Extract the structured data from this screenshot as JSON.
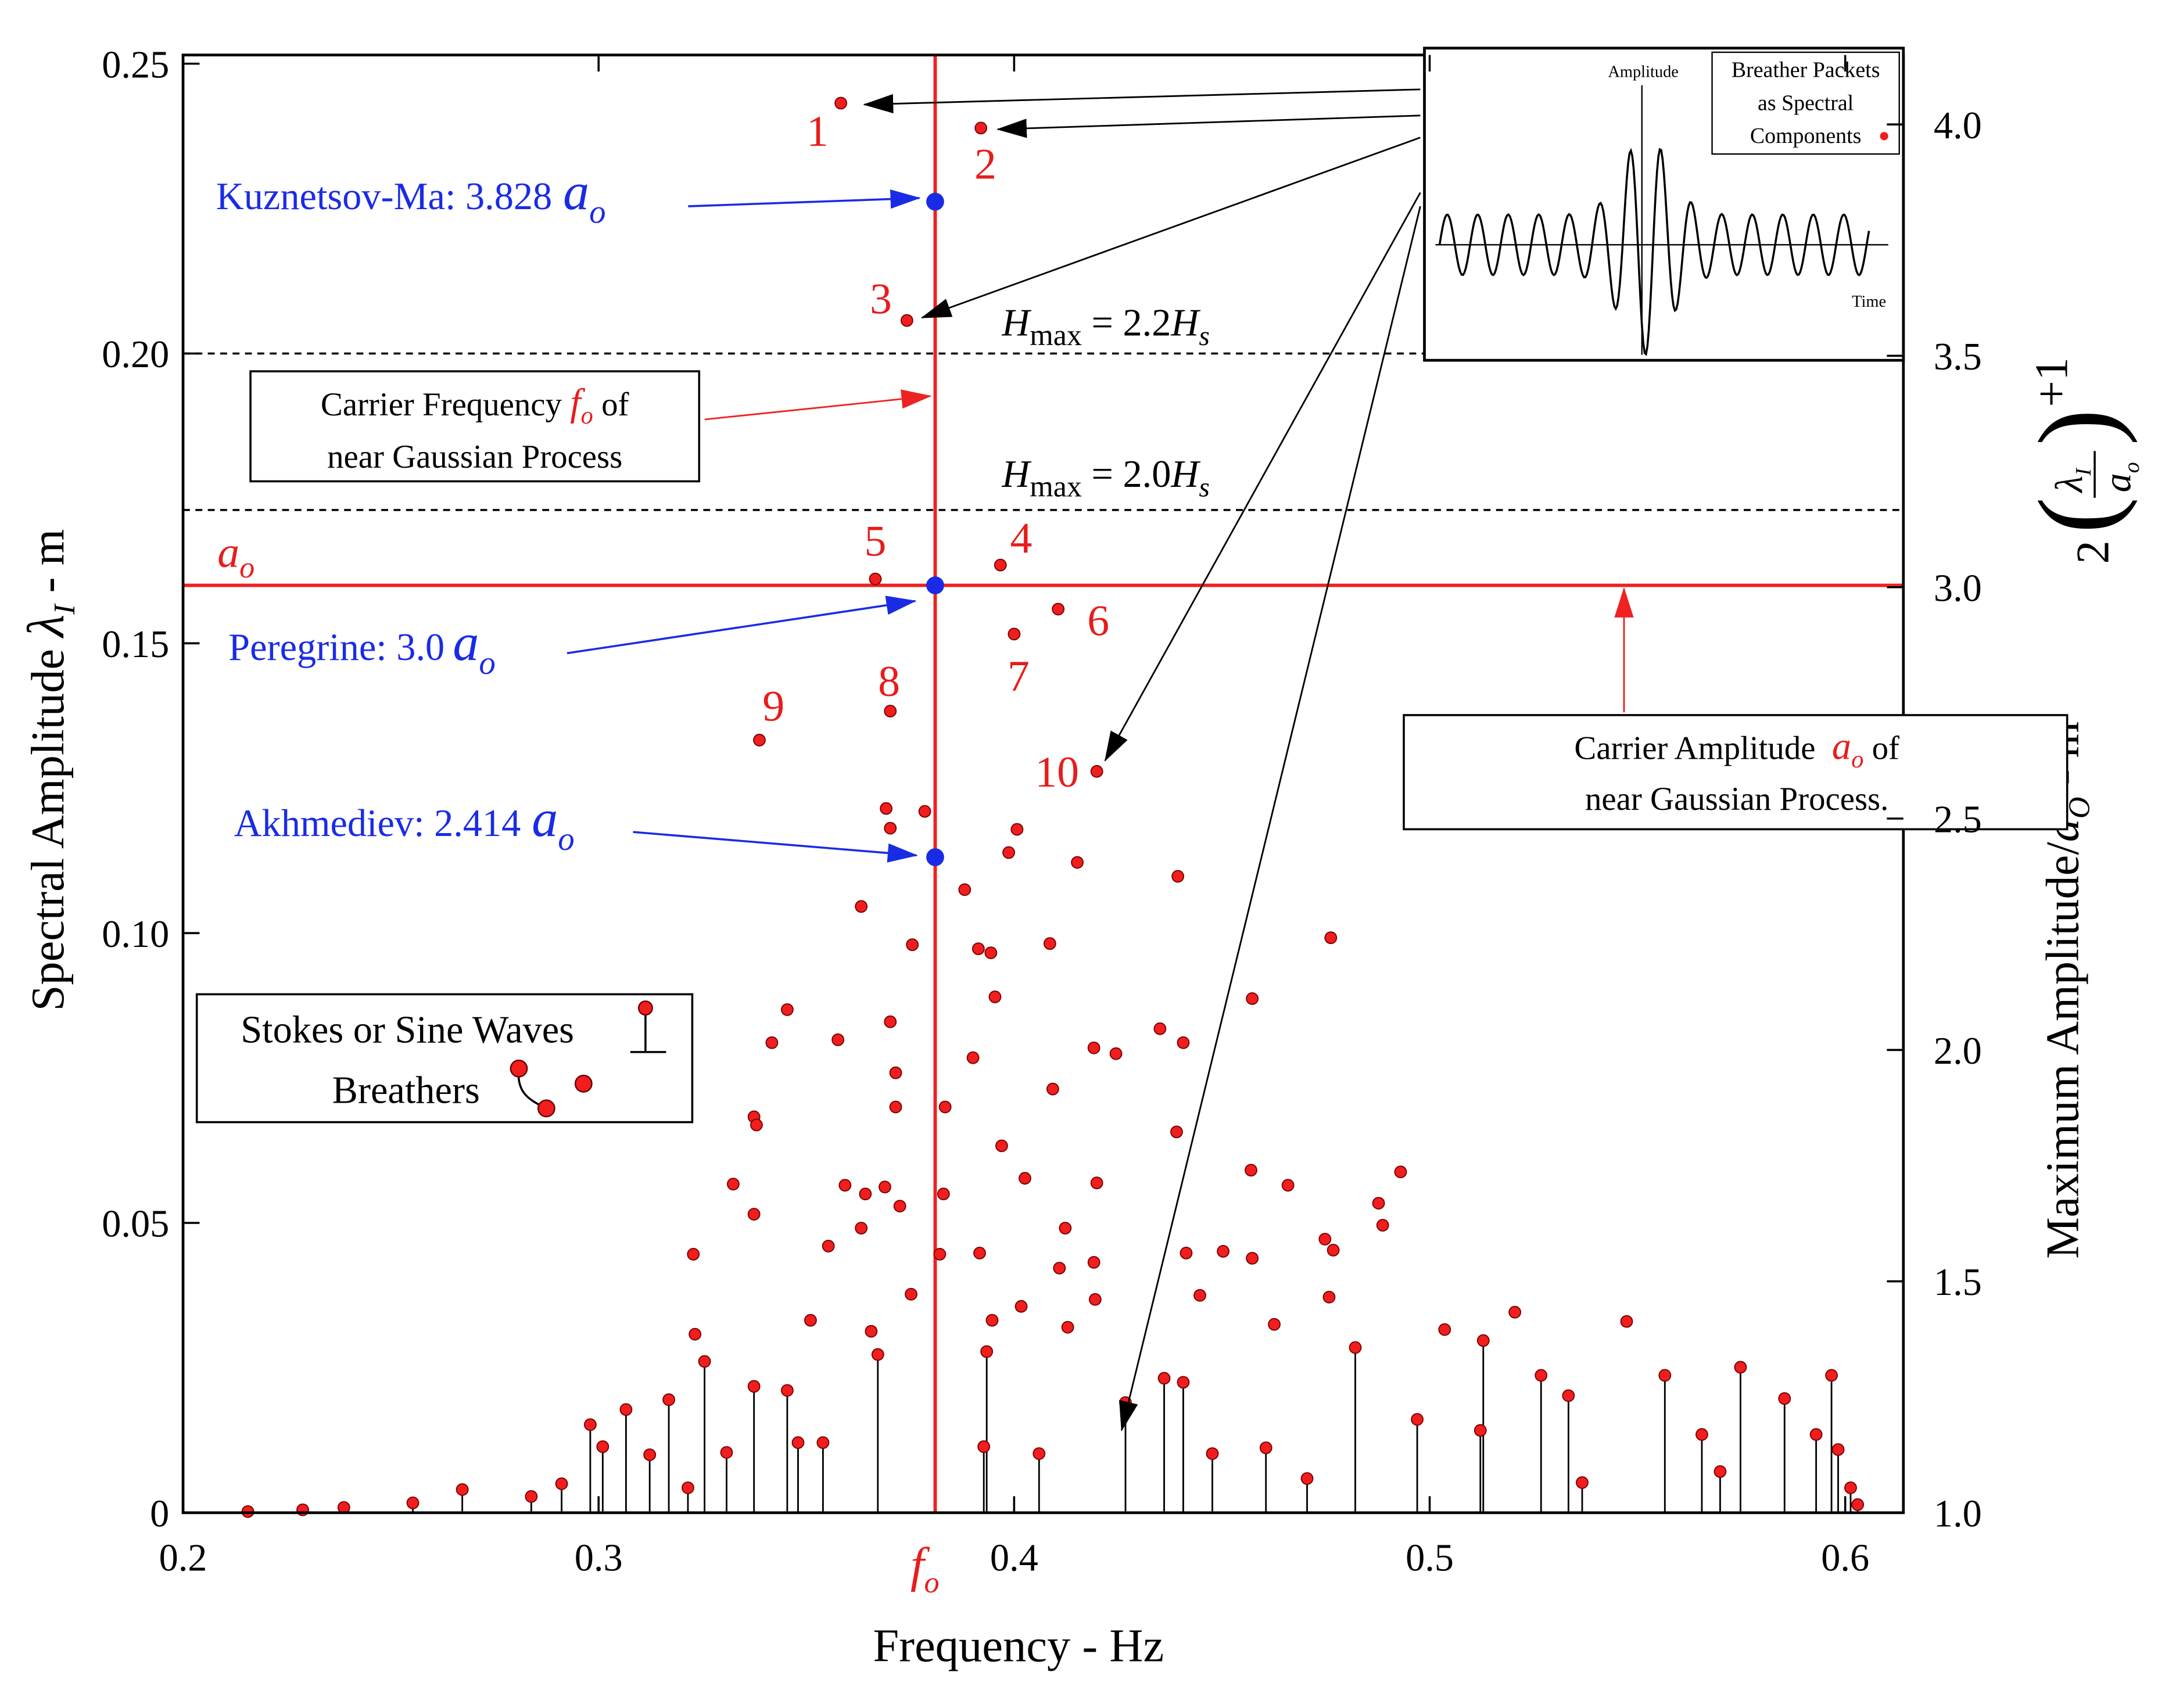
{
  "chart_data": {
    "type": "scatter",
    "x_label": "Frequency - Hz",
    "y_label": [
      "Spectral Amplitude ",
      "λ",
      "I",
      " - m"
    ],
    "y2_label": [
      "Maximum Amplitude/",
      "a",
      "O",
      " - m"
    ],
    "y2_formula": [
      "2",
      "λ",
      "I",
      "a",
      "o",
      "+1"
    ],
    "xlim": [
      0.2,
      0.614
    ],
    "ylim": [
      0,
      0.2515
    ],
    "y2lim": [
      1.0,
      4.15
    ],
    "xticks": [
      0.2,
      0.3,
      0.4,
      0.5,
      0.6
    ],
    "yticks": [
      0,
      0.05,
      {
        "value": 0.1,
        "label": "0.10"
      },
      0.15,
      {
        "value": 0.2,
        "label": "0.20"
      },
      0.25
    ],
    "y2ticks": [
      {
        "value": 1,
        "label": "1.0"
      },
      1.5,
      {
        "value": 2,
        "label": "2.0"
      },
      2.5,
      {
        "value": 3,
        "label": "3.0"
      },
      3.5,
      {
        "value": 4,
        "label": "4.0"
      }
    ],
    "amplitude_symbol": [
      "a",
      "o"
    ],
    "frequency_symbol": [
      "f",
      "o"
    ],
    "carrier": {
      "frequency": 0.381,
      "amplitude": 0.16,
      "color": "#ee2222"
    },
    "hmax_lines": [
      {
        "value": 0.2,
        "label": [
          "H",
          "max",
          " = 2.2",
          "H",
          "s"
        ]
      },
      {
        "value": 0.173,
        "label": [
          "H",
          "max",
          " = 2.0",
          "H",
          "s"
        ]
      }
    ],
    "solutions": {
      "color": "#1a2be6",
      "texts": [
        "Kuznetsov-Ma: 3.828",
        "Peregrine: 3.0",
        "Akhmediev: 2.414"
      ],
      "values": [
        0.2262,
        0.16,
        0.1131
      ]
    },
    "boxes": [
      [
        "Carrier Frequency ",
        " of",
        "near Gaussian Process"
      ],
      [
        "Carrier Amplitude ",
        " of",
        "near Gaussian Process."
      ]
    ],
    "legend_entries": [
      "Stokes or Sine Waves",
      "Breathers"
    ],
    "inset": {
      "title": [
        "Breather Packets",
        "as Spectral",
        "Components"
      ],
      "y_label": "Amplitude",
      "x_label": "Time"
    },
    "numbered_points": {
      "labels": [
        "1",
        "2",
        "3",
        "4",
        "5",
        "6",
        "7",
        "8",
        "9",
        "10"
      ],
      "x": [
        0.3583,
        0.392,
        0.3742,
        0.3967,
        0.3666,
        0.4106,
        0.4,
        0.3702,
        0.3387,
        0.4199
      ],
      "values": [
        0.2432,
        0.2389,
        0.2057,
        0.1635,
        0.1611,
        0.1559,
        0.1516,
        0.1383,
        0.1333,
        0.1279
      ]
    },
    "series": [
      {
        "color": "#f21d1d",
        "x": [
          0.3692,
          0.3785,
          0.3702,
          0.4007,
          0.3987,
          0.4152,
          0.4394,
          0.3881,
          0.3632,
          0.3944,
          0.3755,
          0.4086,
          0.4762,
          0.3914,
          0.3954,
          0.4573,
          0.3454,
          0.3702,
          0.4351,
          0.4407,
          0.3417,
          0.3576,
          0.4192,
          0.4245,
          0.3901,
          0.3715,
          0.4093,
          0.3715,
          0.3834,
          0.3374,
          0.4391,
          0.397,
          0.338,
          0.457,
          0.493,
          0.4026,
          0.4199,
          0.3324,
          0.3593,
          0.3689,
          0.4659,
          0.383,
          0.4877,
          0.3642,
          0.3725,
          0.3374,
          0.4887,
          0.3632,
          0.4123,
          0.4748,
          0.3553,
          0.3917,
          0.3821,
          0.4414,
          0.4503,
          0.4573,
          0.4768,
          0.4192,
          0.3228,
          0.4109,
          0.3752,
          0.4758,
          0.4195,
          0.4017,
          0.4447,
          0.351,
          0.3947,
          0.4626,
          0.5205,
          0.5474,
          0.3656,
          0.4129,
          0.3232,
          0.5036,
          0.5129,
          0.4821,
          0.3672,
          0.3934,
          0.3255,
          0.5748,
          0.5967,
          0.3374,
          0.3454,
          0.5566,
          0.5854,
          0.3169,
          0.3066,
          0.298,
          0.5268,
          0.5334,
          0.497,
          0.4407,
          0.4361,
          0.4268,
          0.5122,
          0.5655,
          0.593,
          0.301,
          0.3123,
          0.3308,
          0.348,
          0.354,
          0.3927,
          0.406,
          0.4477,
          0.4606,
          0.5983,
          0.6013,
          0.603,
          0.2911,
          0.2838,
          0.2672,
          0.2553,
          0.2387,
          0.2288,
          0.2156,
          0.3215,
          0.4705,
          0.5367,
          0.5699
        ],
        "values": [
          0.1215,
          0.121,
          0.1181,
          0.1179,
          0.1139,
          0.1122,
          0.1098,
          0.1075,
          0.1046,
          0.0966,
          0.098,
          0.0982,
          0.0992,
          0.0973,
          0.089,
          0.0887,
          0.0868,
          0.0847,
          0.0835,
          0.0811,
          0.0811,
          0.0816,
          0.0802,
          0.0792,
          0.0785,
          0.0759,
          0.0731,
          0.07,
          0.07,
          0.0683,
          0.0657,
          0.0633,
          0.0669,
          0.0591,
          0.0588,
          0.0577,
          0.0569,
          0.0567,
          0.0565,
          0.0562,
          0.0565,
          0.055,
          0.0534,
          0.055,
          0.0529,
          0.0515,
          0.0496,
          0.0491,
          0.0491,
          0.0472,
          0.046,
          0.0448,
          0.0446,
          0.0448,
          0.0451,
          0.0439,
          0.0453,
          0.0432,
          0.0446,
          0.0422,
          0.0377,
          0.0372,
          0.0368,
          0.0356,
          0.0375,
          0.0332,
          0.0332,
          0.0325,
          0.0346,
          0.033,
          0.0313,
          0.032,
          0.0308,
          0.0316,
          0.0297,
          0.0285,
          0.0273,
          0.0278,
          0.0261,
          0.0251,
          0.0237,
          0.0218,
          0.0211,
          0.0237,
          0.0197,
          0.0195,
          0.0178,
          0.0152,
          0.0237,
          0.0202,
          0.0161,
          0.0225,
          0.0232,
          0.019,
          0.0142,
          0.0135,
          0.0135,
          0.0114,
          0.01,
          0.0104,
          0.0121,
          0.0121,
          0.0114,
          0.0102,
          0.0102,
          0.0112,
          0.0109,
          0.0043,
          0.0014,
          0.005,
          0.0028,
          0.004,
          0.0017,
          0.0009,
          0.0005,
          0.0002,
          0.0043,
          0.0059,
          0.0052,
          0.0071
        ]
      }
    ]
  }
}
